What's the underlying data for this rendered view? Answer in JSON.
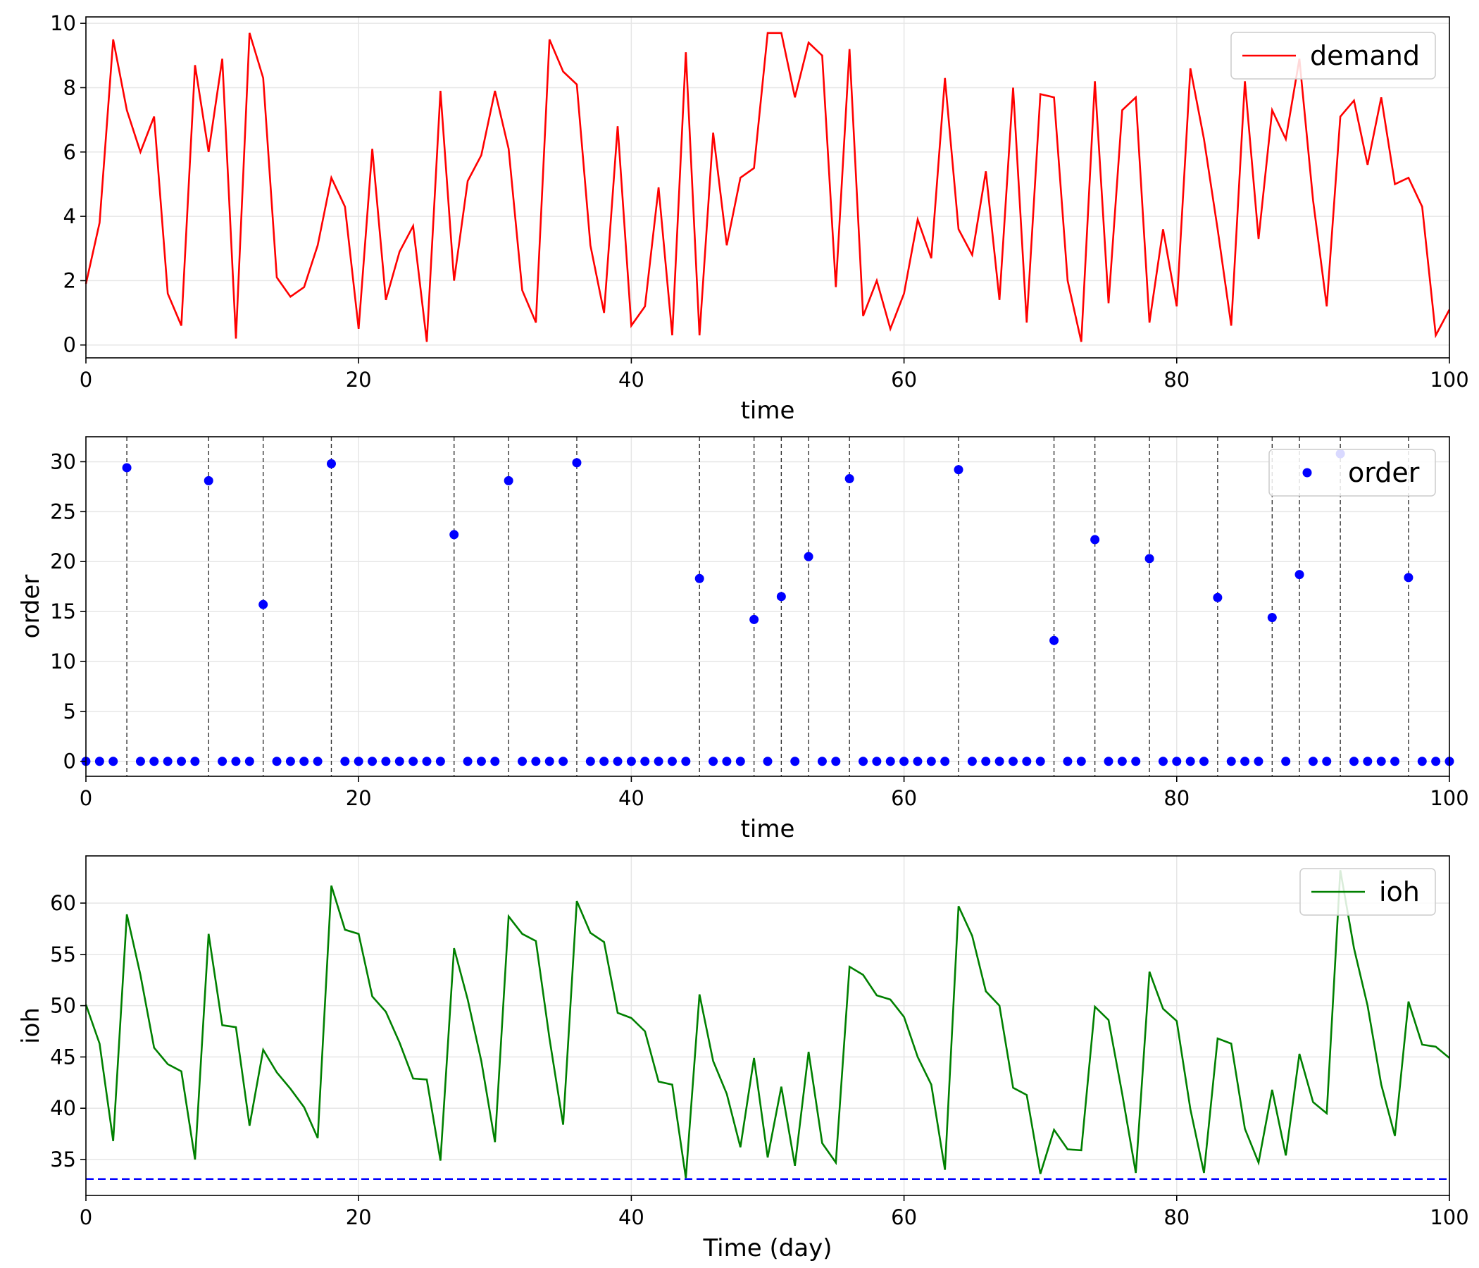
{
  "chart_data": [
    {
      "type": "line",
      "xlabel": "time",
      "ylabel": "",
      "xlim": [
        0,
        100
      ],
      "ylim": [
        -0.4,
        10.2
      ],
      "xticks": [
        0,
        20,
        40,
        60,
        80,
        100
      ],
      "yticks": [
        0,
        2,
        4,
        6,
        8,
        10
      ],
      "grid": true,
      "legend": "top-right",
      "series": [
        {
          "name": "demand",
          "color": "#ff0000",
          "x": [
            0,
            1,
            2,
            3,
            4,
            5,
            6,
            7,
            8,
            9,
            10,
            11,
            12,
            13,
            14,
            15,
            16,
            17,
            18,
            19,
            20,
            21,
            22,
            23,
            24,
            25,
            26,
            27,
            28,
            29,
            30,
            31,
            32,
            33,
            34,
            35,
            36,
            37,
            38,
            39,
            40,
            41,
            42,
            43,
            44,
            45,
            46,
            47,
            48,
            49,
            50,
            51,
            52,
            53,
            54,
            55,
            56,
            57,
            58,
            59,
            60,
            61,
            62,
            63,
            64,
            65,
            66,
            67,
            68,
            69,
            70,
            71,
            72,
            73,
            74,
            75,
            76,
            77,
            78,
            79,
            80,
            81,
            82,
            83,
            84,
            85,
            86,
            87,
            88,
            89,
            90,
            91,
            92,
            93,
            94,
            95,
            96,
            97,
            98,
            99,
            100
          ],
          "values": [
            1.9,
            3.8,
            9.5,
            7.3,
            6.0,
            7.1,
            1.6,
            0.6,
            8.7,
            6.0,
            8.9,
            0.2,
            9.7,
            8.3,
            2.1,
            1.5,
            1.8,
            3.1,
            5.2,
            4.3,
            0.5,
            6.1,
            1.4,
            2.9,
            3.7,
            0.1,
            7.9,
            2.0,
            5.1,
            5.9,
            7.9,
            6.1,
            1.7,
            0.7,
            9.5,
            8.5,
            8.1,
            3.1,
            1.0,
            6.8,
            0.6,
            1.2,
            4.9,
            0.3,
            9.1,
            0.3,
            6.6,
            3.1,
            5.2,
            5.5,
            9.7,
            9.7,
            7.7,
            9.4,
            9.0,
            1.8,
            9.2,
            0.9,
            2.0,
            0.5,
            1.6,
            3.9,
            2.7,
            8.3,
            3.6,
            2.8,
            5.4,
            1.4,
            8.0,
            0.7,
            7.8,
            7.7,
            2.0,
            0.1,
            8.2,
            1.3,
            7.3,
            7.7,
            0.7,
            3.6,
            1.2,
            8.6,
            6.4,
            3.6,
            0.6,
            8.2,
            3.3,
            7.3,
            6.4,
            8.9,
            4.5,
            1.2,
            7.1,
            7.6,
            5.6,
            7.7,
            5.0,
            5.2,
            4.3,
            0.3,
            1.1
          ]
        }
      ]
    },
    {
      "type": "scatter",
      "xlabel": "time",
      "ylabel": "order",
      "xlim": [
        0,
        100
      ],
      "ylim": [
        -1.5,
        32.5
      ],
      "xticks": [
        0,
        20,
        40,
        60,
        80,
        100
      ],
      "yticks": [
        0,
        5,
        10,
        15,
        20,
        25,
        30
      ],
      "grid": true,
      "legend": "top-right",
      "vlines_at_orders": [
        3,
        9,
        13,
        18,
        27,
        31,
        36,
        45,
        49,
        51,
        53,
        56,
        64,
        71,
        74,
        78,
        83,
        87,
        89,
        92,
        97
      ],
      "series": [
        {
          "name": "order",
          "color": "#0000ff",
          "x": [
            0,
            1,
            2,
            3,
            4,
            5,
            6,
            7,
            8,
            9,
            10,
            11,
            12,
            13,
            14,
            15,
            16,
            17,
            18,
            19,
            20,
            21,
            22,
            23,
            24,
            25,
            26,
            27,
            28,
            29,
            30,
            31,
            32,
            33,
            34,
            35,
            36,
            37,
            38,
            39,
            40,
            41,
            42,
            43,
            44,
            45,
            46,
            47,
            48,
            49,
            50,
            51,
            52,
            53,
            54,
            55,
            56,
            57,
            58,
            59,
            60,
            61,
            62,
            63,
            64,
            65,
            66,
            67,
            68,
            69,
            70,
            71,
            72,
            73,
            74,
            75,
            76,
            77,
            78,
            79,
            80,
            81,
            82,
            83,
            84,
            85,
            86,
            87,
            88,
            89,
            90,
            91,
            92,
            93,
            94,
            95,
            96,
            97,
            98,
            99,
            100
          ],
          "values": [
            0,
            0,
            0,
            29.4,
            0,
            0,
            0,
            0,
            0,
            28.1,
            0,
            0,
            0,
            15.7,
            0,
            0,
            0,
            0,
            29.8,
            0,
            0,
            0,
            0,
            0,
            0,
            0,
            0,
            22.7,
            0,
            0,
            0,
            28.1,
            0,
            0,
            0,
            0,
            29.9,
            0,
            0,
            0,
            0,
            0,
            0,
            0,
            0,
            18.3,
            0,
            0,
            0,
            14.2,
            0,
            16.5,
            0,
            20.5,
            0,
            0,
            28.3,
            0,
            0,
            0,
            0,
            0,
            0,
            0,
            29.2,
            0,
            0,
            0,
            0,
            0,
            0,
            12.1,
            0,
            0,
            22.2,
            0,
            0,
            0,
            20.3,
            0,
            0,
            0,
            0,
            16.4,
            0,
            0,
            0,
            14.4,
            0,
            18.7,
            0,
            0,
            30.8,
            0,
            0,
            0,
            0,
            18.4,
            0,
            0,
            0
          ]
        }
      ]
    },
    {
      "type": "line",
      "xlabel": "Time (day)",
      "ylabel": "ioh",
      "xlim": [
        0,
        100
      ],
      "ylim": [
        31.5,
        64.6
      ],
      "xticks": [
        0,
        20,
        40,
        60,
        80,
        100
      ],
      "yticks": [
        35,
        40,
        45,
        50,
        55,
        60
      ],
      "grid": true,
      "legend": "top-right",
      "hline": {
        "y": 33.1,
        "color": "#0000ff",
        "style": "dashed"
      },
      "series": [
        {
          "name": "ioh",
          "color": "#008000",
          "x": [
            0,
            1,
            2,
            3,
            4,
            5,
            6,
            7,
            8,
            9,
            10,
            11,
            12,
            13,
            14,
            15,
            16,
            17,
            18,
            19,
            20,
            21,
            22,
            23,
            24,
            25,
            26,
            27,
            28,
            29,
            30,
            31,
            32,
            33,
            34,
            35,
            36,
            37,
            38,
            39,
            40,
            41,
            42,
            43,
            44,
            45,
            46,
            47,
            48,
            49,
            50,
            51,
            52,
            53,
            54,
            55,
            56,
            57,
            58,
            59,
            60,
            61,
            62,
            63,
            64,
            65,
            66,
            67,
            68,
            69,
            70,
            71,
            72,
            73,
            74,
            75,
            76,
            77,
            78,
            79,
            80,
            81,
            82,
            83,
            84,
            85,
            86,
            87,
            88,
            89,
            90,
            91,
            92,
            93,
            94,
            95,
            96,
            97,
            98,
            99,
            100
          ],
          "values": [
            50.1,
            46.3,
            36.8,
            58.9,
            53.0,
            45.9,
            44.3,
            43.6,
            35.0,
            57.0,
            48.1,
            47.9,
            38.3,
            45.7,
            43.5,
            41.9,
            40.1,
            37.1,
            61.7,
            57.4,
            57.0,
            50.9,
            49.4,
            46.4,
            42.9,
            42.8,
            34.9,
            55.6,
            50.6,
            44.6,
            36.7,
            58.7,
            57.0,
            56.3,
            46.8,
            38.4,
            60.2,
            57.1,
            56.2,
            49.3,
            48.8,
            47.5,
            42.6,
            42.3,
            33.2,
            51.1,
            44.6,
            41.4,
            36.2,
            44.9,
            35.2,
            42.1,
            34.4,
            45.5,
            36.6,
            34.7,
            53.8,
            53.0,
            51.0,
            50.6,
            48.9,
            45.0,
            42.3,
            34.0,
            59.7,
            56.8,
            51.4,
            50.0,
            42.0,
            41.3,
            33.6,
            37.9,
            36.0,
            35.9,
            49.9,
            48.6,
            41.4,
            33.7,
            53.3,
            49.7,
            48.5,
            39.9,
            33.7,
            46.8,
            46.3,
            38.0,
            34.7,
            41.8,
            35.4,
            45.3,
            40.6,
            39.5,
            63.2,
            55.6,
            50.0,
            42.3,
            37.3,
            50.4,
            46.2,
            46.0,
            44.9
          ]
        }
      ]
    }
  ]
}
